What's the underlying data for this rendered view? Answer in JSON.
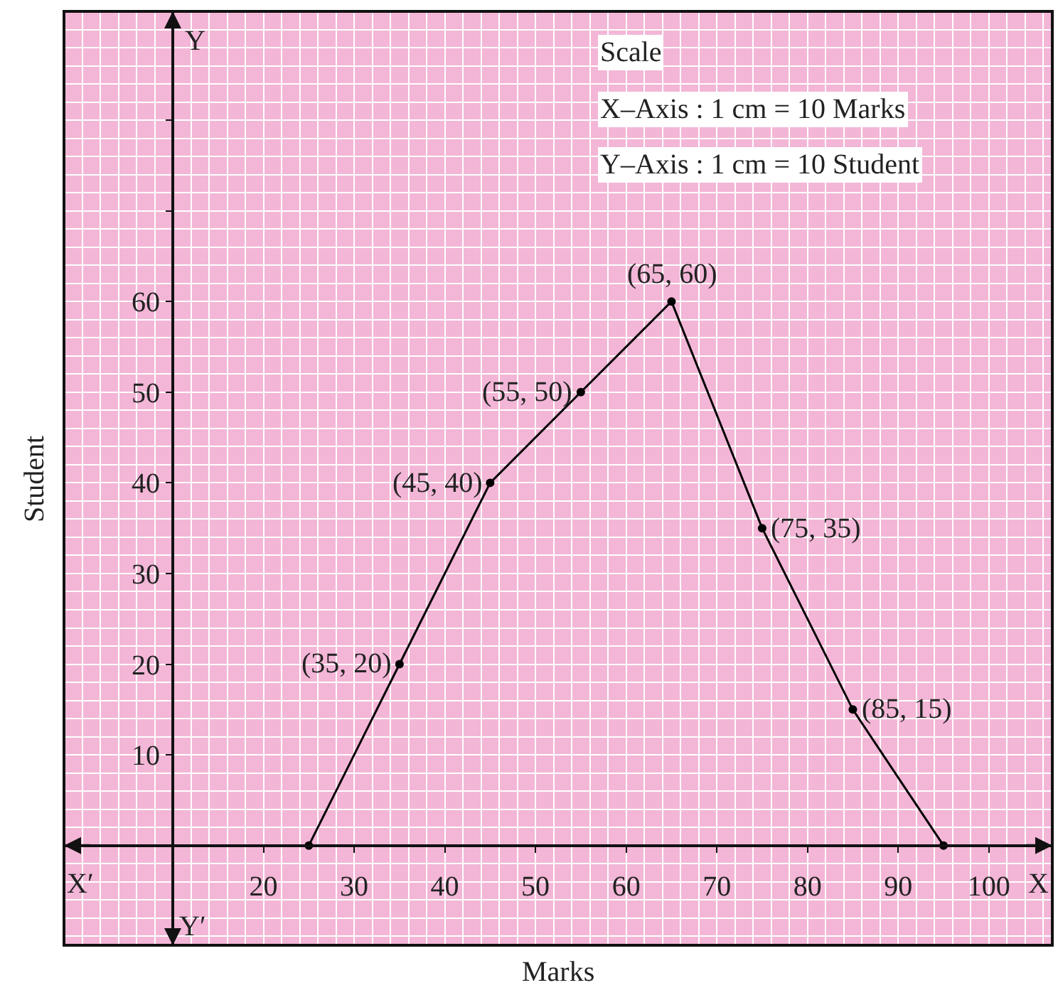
{
  "chart_data": {
    "type": "line",
    "xlabel": "Marks",
    "ylabel": "Student",
    "x": [
      25,
      35,
      45,
      55,
      65,
      75,
      85,
      95
    ],
    "values": [
      0,
      20,
      40,
      50,
      60,
      35,
      15,
      0
    ],
    "color": "#000000",
    "marker": "circle",
    "line_style": "solid",
    "xlim": [
      -2,
      107
    ],
    "ylim": [
      -11,
      92
    ],
    "xticks": [
      20,
      30,
      40,
      50,
      60,
      70,
      80,
      90,
      100
    ],
    "yticks": [
      10,
      20,
      30,
      40,
      50,
      60,
      {
        "value": 70,
        "label": null
      },
      {
        "value": 80,
        "label": null
      }
    ],
    "grid": true,
    "annotations": [
      "Scale",
      "X–Axis : 1 cm = 10 Marks",
      "Y–Axis : 1 cm = 10 Student",
      "X′",
      "Y",
      "Y′",
      "X",
      {
        "text": "(35, 20)",
        "x": 35,
        "y": 20
      },
      {
        "text": "(45, 40)",
        "x": 45,
        "y": 40
      },
      {
        "text": "(55, 50)",
        "x": 55,
        "y": 50
      },
      {
        "text": "(65, 60)",
        "x": 65,
        "y": 60
      },
      {
        "text": "(75, 35)",
        "x": 75,
        "y": 35
      },
      {
        "text": "(85, 15)",
        "x": 85,
        "y": 15
      }
    ]
  }
}
